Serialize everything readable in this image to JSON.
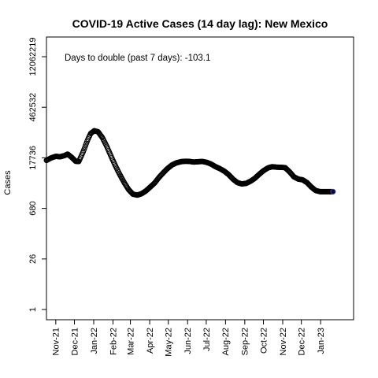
{
  "chart_data": {
    "type": "scatter",
    "title": "COVID-19 Active Cases (14 day lag): New Mexico",
    "ylabel": "Cases",
    "xlabel": "",
    "annotation": "Days to double (past 7 days): -103.1",
    "y_scale": "log",
    "y_ticks": [
      "1",
      "26",
      "680",
      "17736",
      "462532",
      "12062219"
    ],
    "x_ticks": [
      "Nov-21",
      "Dec-21",
      "Jan-22",
      "Feb-22",
      "Mar-22",
      "Apr-22",
      "May-22",
      "Jun-22",
      "Jul-22",
      "Aug-22",
      "Sep-22",
      "Oct-22",
      "Nov-22",
      "Dec-22",
      "Jan-23"
    ],
    "xlim": [
      "2021-10-17",
      "2023-02-23"
    ],
    "grid": false,
    "point_color": "#000000",
    "last_point_color": "#3a3acc",
    "series": [
      {
        "points": [
          [
            "2021-10-17",
            15000
          ],
          [
            "2021-10-24",
            17500
          ],
          [
            "2021-11-01",
            19500
          ],
          [
            "2021-11-08",
            19000
          ],
          [
            "2021-11-15",
            20500
          ],
          [
            "2021-11-20",
            22500
          ],
          [
            "2021-11-27",
            18000
          ],
          [
            "2021-12-03",
            14200
          ],
          [
            "2021-12-08",
            14000
          ],
          [
            "2021-12-15",
            26000
          ],
          [
            "2021-12-22",
            55000
          ],
          [
            "2021-12-27",
            85000
          ],
          [
            "2022-01-02",
            102000
          ],
          [
            "2022-01-08",
            95000
          ],
          [
            "2022-01-15",
            65000
          ],
          [
            "2022-01-22",
            37000
          ],
          [
            "2022-01-29",
            19500
          ],
          [
            "2022-02-05",
            10500
          ],
          [
            "2022-02-12",
            6000
          ],
          [
            "2022-02-19",
            3600
          ],
          [
            "2022-02-26",
            2300
          ],
          [
            "2022-03-05",
            1700
          ],
          [
            "2022-03-12",
            1600
          ],
          [
            "2022-03-19",
            1750
          ],
          [
            "2022-03-26",
            2100
          ],
          [
            "2022-04-02",
            2700
          ],
          [
            "2022-04-09",
            3500
          ],
          [
            "2022-04-16",
            5000
          ],
          [
            "2022-04-23",
            6800
          ],
          [
            "2022-04-30",
            9000
          ],
          [
            "2022-05-07",
            11200
          ],
          [
            "2022-05-14",
            12800
          ],
          [
            "2022-05-21",
            13800
          ],
          [
            "2022-05-28",
            14200
          ],
          [
            "2022-06-04",
            14100
          ],
          [
            "2022-06-11",
            13500
          ],
          [
            "2022-06-18",
            13800
          ],
          [
            "2022-06-25",
            14000
          ],
          [
            "2022-07-02",
            13200
          ],
          [
            "2022-07-09",
            11800
          ],
          [
            "2022-07-16",
            10000
          ],
          [
            "2022-07-23",
            8800
          ],
          [
            "2022-07-30",
            7500
          ],
          [
            "2022-08-06",
            6000
          ],
          [
            "2022-08-13",
            4500
          ],
          [
            "2022-08-20",
            3600
          ],
          [
            "2022-08-27",
            3300
          ],
          [
            "2022-09-03",
            3400
          ],
          [
            "2022-09-10",
            3900
          ],
          [
            "2022-09-17",
            4700
          ],
          [
            "2022-09-24",
            6100
          ],
          [
            "2022-10-01",
            7700
          ],
          [
            "2022-10-08",
            9200
          ],
          [
            "2022-10-15",
            10000
          ],
          [
            "2022-10-22",
            9700
          ],
          [
            "2022-10-29",
            9600
          ],
          [
            "2022-11-05",
            9400
          ],
          [
            "2022-11-12",
            7200
          ],
          [
            "2022-11-19",
            5200
          ],
          [
            "2022-11-26",
            4500
          ],
          [
            "2022-12-03",
            4300
          ],
          [
            "2022-12-10",
            3600
          ],
          [
            "2022-12-17",
            2700
          ],
          [
            "2022-12-24",
            2150
          ],
          [
            "2022-12-31",
            2000
          ],
          [
            "2023-01-07",
            2000
          ],
          [
            "2023-01-14",
            2000
          ],
          [
            "2023-01-21",
            2000
          ]
        ]
      }
    ]
  }
}
